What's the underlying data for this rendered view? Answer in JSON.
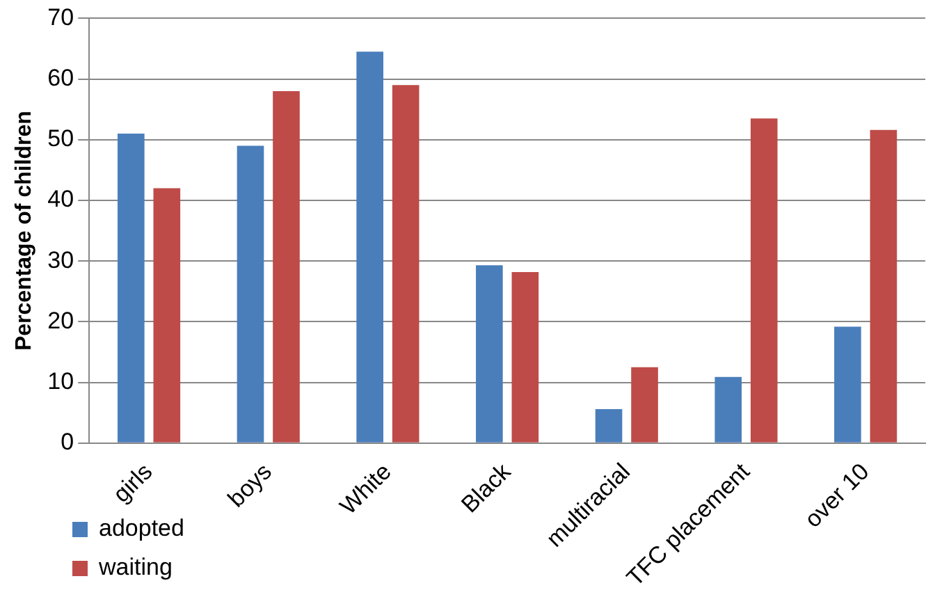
{
  "chart_data": {
    "type": "bar",
    "ylabel": "Percentage of children",
    "categories": [
      "girls",
      "boys",
      "White",
      "Black",
      "multiracial",
      "TFC placement",
      "over 10"
    ],
    "series": [
      {
        "name": "adopted",
        "color": "#4a7ebb",
        "values": [
          51,
          49,
          64.5,
          29.3,
          5.6,
          10.9,
          19.2
        ]
      },
      {
        "name": "waiting",
        "color": "#be4b48",
        "values": [
          42,
          58,
          59,
          28.2,
          12.5,
          53.5,
          51.6
        ]
      }
    ],
    "ylim": [
      0,
      70
    ],
    "yticks": [
      0,
      10,
      20,
      30,
      40,
      50,
      60,
      70
    ],
    "grid": "y",
    "legend": "bottom left"
  }
}
